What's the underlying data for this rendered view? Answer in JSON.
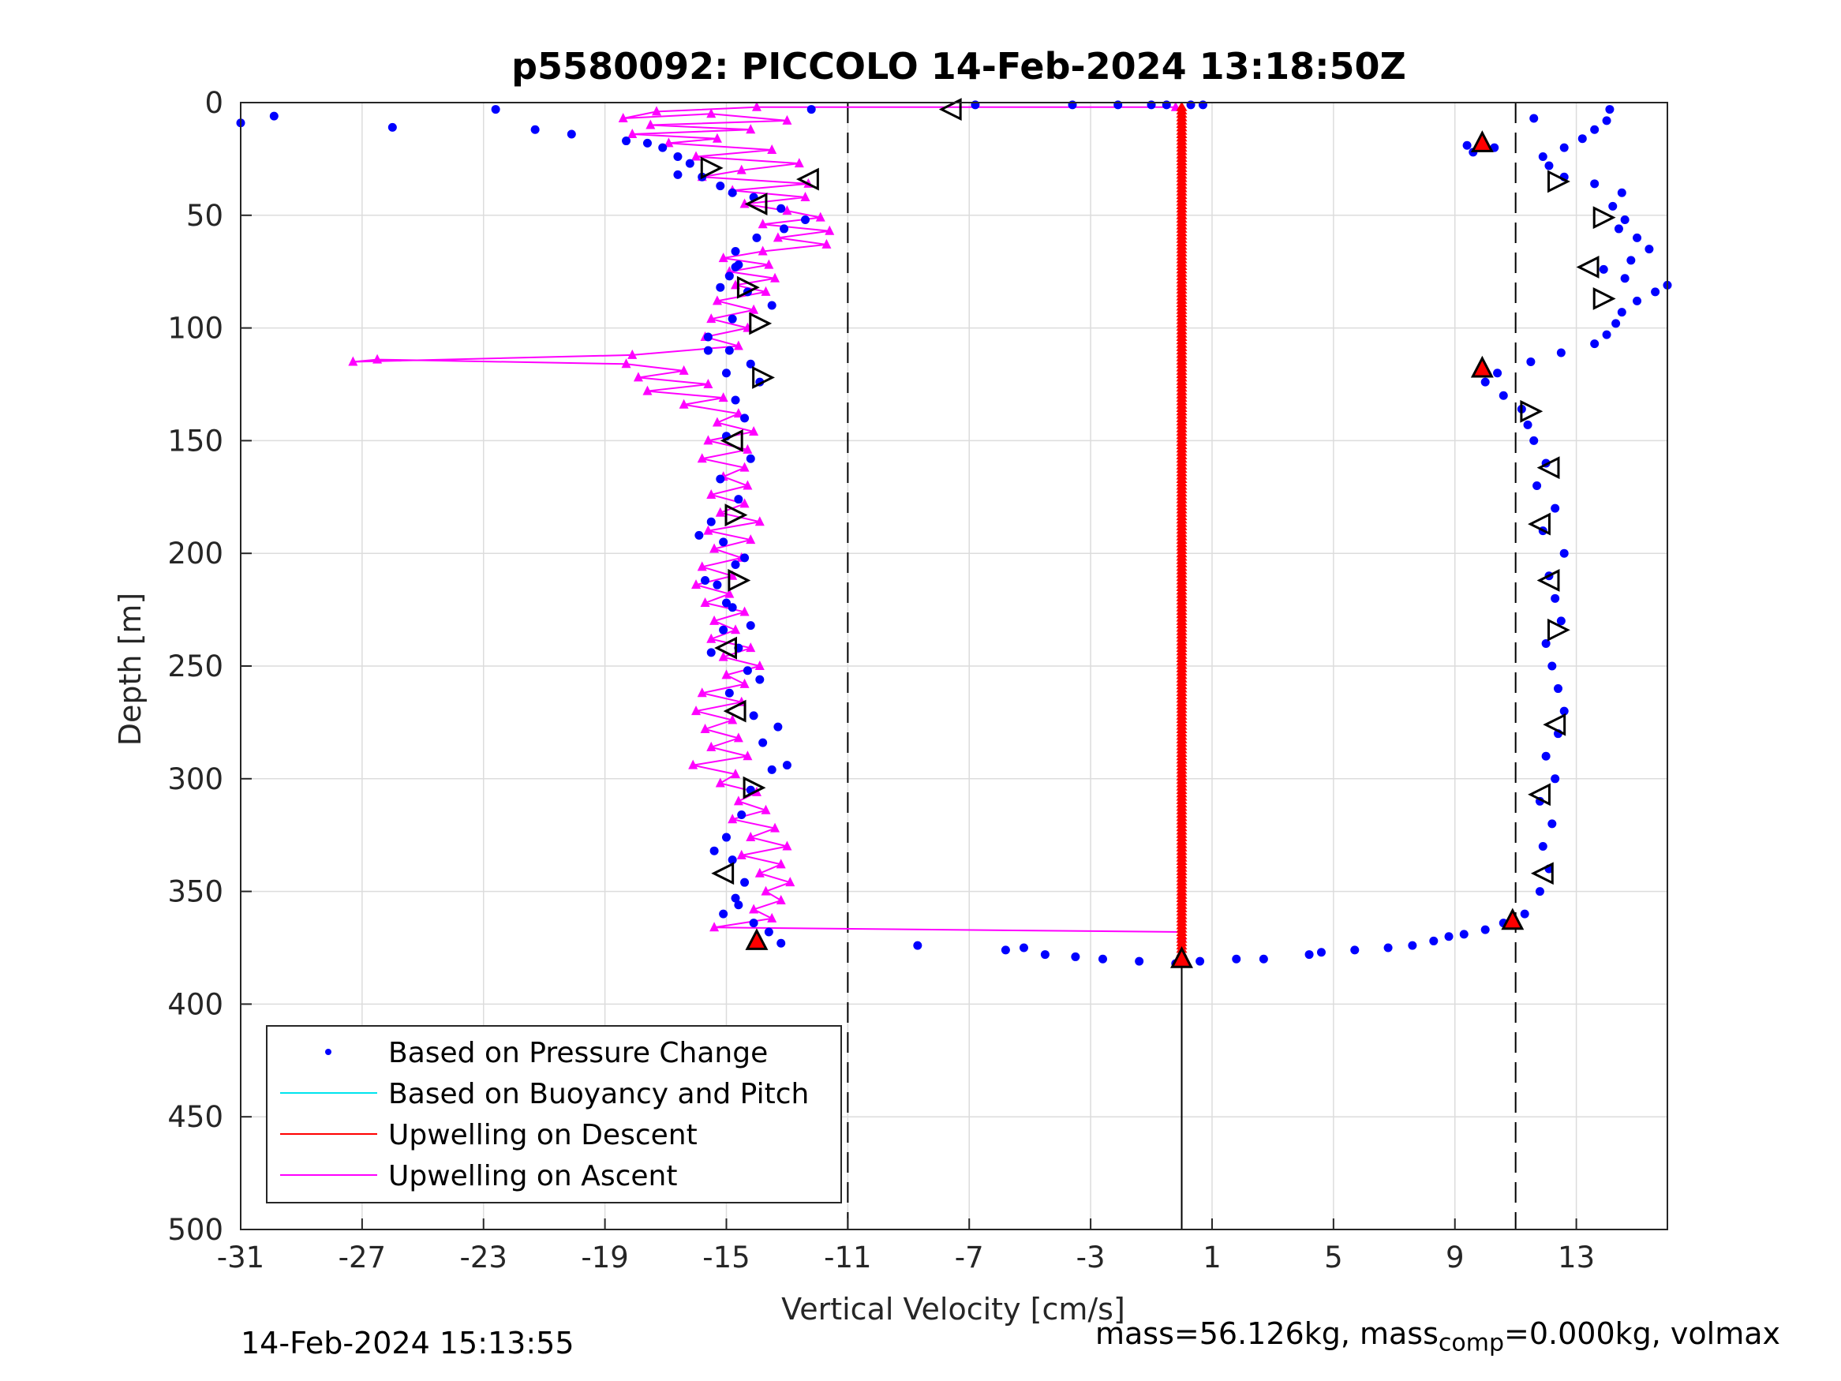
{
  "chart_data": {
    "type": "scatter",
    "title": "p5580092: PICCOLO 14-Feb-2024 13:18:50Z",
    "xlabel": "Vertical Velocity [cm/s]",
    "ylabel": "Depth [m]",
    "xlim": [
      -31,
      16
    ],
    "ylim": [
      0,
      500
    ],
    "y_reversed": true,
    "grid": true,
    "xticks": [
      -31,
      -27,
      -23,
      -19,
      -15,
      -11,
      -7,
      -3,
      1,
      5,
      9,
      13
    ],
    "yticks": [
      0,
      50,
      100,
      150,
      200,
      250,
      300,
      350,
      400,
      450,
      500
    ],
    "reference_lines": [
      {
        "x": -11,
        "style": "dashed"
      },
      {
        "x": 11,
        "style": "dashed"
      },
      {
        "x": 0,
        "style": "solid",
        "from_depth": 378,
        "to_depth": 500
      }
    ],
    "legend": {
      "position": "bottom-left",
      "entries": [
        {
          "label": "Based on Pressure Change",
          "color": "#0000ff",
          "marker": "dot"
        },
        {
          "label": "Based on Buoyancy and Pitch",
          "color": "#00e5ee",
          "marker": "line"
        },
        {
          "label": "Upwelling on Descent",
          "color": "#ff0000",
          "marker": "line"
        },
        {
          "label": "Upwelling on Ascent",
          "color": "#ff00ff",
          "marker": "line"
        }
      ]
    },
    "series": [
      {
        "name": "Based on Pressure Change",
        "color": "#0000ff",
        "points": [
          [
            -31,
            9
          ],
          [
            -29.9,
            6
          ],
          [
            -26,
            11
          ],
          [
            -22.6,
            3
          ],
          [
            -21.3,
            12
          ],
          [
            -20.1,
            14
          ],
          [
            -18.3,
            17
          ],
          [
            -17.6,
            18
          ],
          [
            -17.1,
            20
          ],
          [
            -16.6,
            24
          ],
          [
            -16.2,
            27
          ],
          [
            -16.6,
            32
          ],
          [
            -15.8,
            33
          ],
          [
            -15.2,
            37
          ],
          [
            -14.8,
            40
          ],
          [
            -14.1,
            42
          ],
          [
            -13.2,
            47
          ],
          [
            -12.4,
            52
          ],
          [
            -13.1,
            56
          ],
          [
            -14.0,
            60
          ],
          [
            -14.7,
            66
          ],
          [
            -14.6,
            72
          ],
          [
            -14.9,
            77
          ],
          [
            -14.3,
            84
          ],
          [
            -13.5,
            90
          ],
          [
            -14.8,
            96
          ],
          [
            -15.6,
            104
          ],
          [
            -14.9,
            110
          ],
          [
            -14.2,
            116
          ],
          [
            -13.9,
            124
          ],
          [
            -14.7,
            132
          ],
          [
            -14.4,
            140
          ],
          [
            -15.0,
            148
          ],
          [
            -14.2,
            158
          ],
          [
            -15.2,
            167
          ],
          [
            -14.6,
            176
          ],
          [
            -15.5,
            186
          ],
          [
            -15.1,
            195
          ],
          [
            -14.7,
            205
          ],
          [
            -15.3,
            214
          ],
          [
            -14.8,
            224
          ],
          [
            -15.1,
            234
          ],
          [
            -14.6,
            242
          ],
          [
            -14.3,
            252
          ],
          [
            -14.9,
            262
          ],
          [
            -14.1,
            272
          ],
          [
            -13.8,
            284
          ],
          [
            -13.5,
            296
          ],
          [
            -14.2,
            305
          ],
          [
            -14.5,
            316
          ],
          [
            -15.0,
            326
          ],
          [
            -14.8,
            336
          ],
          [
            -14.4,
            346
          ],
          [
            -14.6,
            356
          ],
          [
            -14.1,
            364
          ],
          [
            -13.6,
            368
          ],
          [
            -13.2,
            373
          ],
          [
            -8.7,
            374
          ],
          [
            -5.8,
            376
          ],
          [
            -5.2,
            375
          ],
          [
            -4.5,
            378
          ],
          [
            -3.5,
            379
          ],
          [
            -2.6,
            380
          ],
          [
            -1.4,
            381
          ],
          [
            -0.2,
            382
          ],
          [
            0.6,
            381
          ],
          [
            1.8,
            380
          ],
          [
            2.7,
            380
          ],
          [
            4.2,
            378
          ],
          [
            4.6,
            377
          ],
          [
            5.7,
            376
          ],
          [
            6.8,
            375
          ],
          [
            7.6,
            374
          ],
          [
            8.3,
            372
          ],
          [
            8.8,
            370
          ],
          [
            9.3,
            369
          ],
          [
            10.0,
            367
          ],
          [
            10.6,
            364
          ],
          [
            11.3,
            360
          ],
          [
            11.8,
            350
          ],
          [
            12.1,
            340
          ],
          [
            11.9,
            330
          ],
          [
            12.2,
            320
          ],
          [
            11.8,
            310
          ],
          [
            12.3,
            300
          ],
          [
            12.0,
            290
          ],
          [
            12.4,
            280
          ],
          [
            12.6,
            270
          ],
          [
            12.4,
            260
          ],
          [
            12.2,
            250
          ],
          [
            12.0,
            240
          ],
          [
            12.5,
            230
          ],
          [
            12.3,
            220
          ],
          [
            12.1,
            210
          ],
          [
            12.6,
            200
          ],
          [
            11.9,
            190
          ],
          [
            12.3,
            180
          ],
          [
            11.7,
            170
          ],
          [
            12.0,
            160
          ],
          [
            11.6,
            150
          ],
          [
            11.4,
            143
          ],
          [
            11.2,
            136
          ],
          [
            10.6,
            130
          ],
          [
            10.0,
            124
          ],
          [
            10.4,
            120
          ],
          [
            11.5,
            115
          ],
          [
            12.5,
            111
          ],
          [
            13.6,
            107
          ],
          [
            14.0,
            103
          ],
          [
            14.3,
            98
          ],
          [
            14.5,
            93
          ],
          [
            15.0,
            88
          ],
          [
            15.6,
            84
          ],
          [
            16.0,
            81
          ],
          [
            14.6,
            78
          ],
          [
            13.9,
            74
          ],
          [
            14.8,
            70
          ],
          [
            15.4,
            65
          ],
          [
            15.0,
            60
          ],
          [
            14.4,
            56
          ],
          [
            14.6,
            52
          ],
          [
            14.2,
            46
          ],
          [
            14.5,
            40
          ],
          [
            13.6,
            36
          ],
          [
            12.6,
            33
          ],
          [
            12.1,
            28
          ],
          [
            11.9,
            24
          ],
          [
            12.6,
            20
          ],
          [
            13.2,
            16
          ],
          [
            13.6,
            12
          ],
          [
            14.0,
            8
          ],
          [
            14.1,
            3
          ],
          [
            11.6,
            7
          ],
          [
            10.3,
            20
          ],
          [
            9.8,
            20
          ],
          [
            9.6,
            22
          ],
          [
            9.4,
            19
          ],
          [
            -2.1,
            1
          ],
          [
            -1.0,
            1
          ],
          [
            -0.5,
            1
          ],
          [
            0.3,
            1
          ],
          [
            0.7,
            1
          ],
          [
            -3.6,
            1
          ],
          [
            -6.8,
            1
          ],
          [
            -12.2,
            3
          ],
          [
            -14.7,
            73
          ],
          [
            -15.2,
            82
          ],
          [
            -15.6,
            110
          ],
          [
            -15.0,
            120
          ],
          [
            -15.9,
            192
          ],
          [
            -14.4,
            202
          ],
          [
            -15.7,
            212
          ],
          [
            -15.0,
            222
          ],
          [
            -14.2,
            232
          ],
          [
            -15.5,
            244
          ],
          [
            -13.9,
            256
          ],
          [
            -13.3,
            277
          ],
          [
            -13.0,
            294
          ],
          [
            -15.4,
            332
          ],
          [
            -14.7,
            353
          ],
          [
            -15.1,
            360
          ]
        ]
      },
      {
        "name": "Upwelling on Descent",
        "color": "#ff0000",
        "x_constant": 0,
        "depth_from": 2,
        "depth_to": 378
      },
      {
        "name": "Upwelling on Ascent",
        "color": "#ff00ff",
        "points": [
          [
            -0.2,
            2
          ],
          [
            -14.0,
            2
          ],
          [
            -17.3,
            4
          ],
          [
            -18.4,
            7
          ],
          [
            -15.5,
            5
          ],
          [
            -13.0,
            8
          ],
          [
            -17.5,
            10
          ],
          [
            -14.2,
            12
          ],
          [
            -18.1,
            14
          ],
          [
            -15.3,
            16
          ],
          [
            -16.9,
            18
          ],
          [
            -13.5,
            21
          ],
          [
            -16.0,
            24
          ],
          [
            -12.6,
            27
          ],
          [
            -14.5,
            30
          ],
          [
            -15.8,
            33
          ],
          [
            -12.3,
            36
          ],
          [
            -14.8,
            39
          ],
          [
            -12.4,
            42
          ],
          [
            -14.4,
            45
          ],
          [
            -13.0,
            48
          ],
          [
            -11.9,
            51
          ],
          [
            -13.8,
            54
          ],
          [
            -11.6,
            57
          ],
          [
            -13.3,
            60
          ],
          [
            -11.7,
            63
          ],
          [
            -13.8,
            66
          ],
          [
            -15.1,
            69
          ],
          [
            -13.6,
            72
          ],
          [
            -14.9,
            75
          ],
          [
            -13.4,
            78
          ],
          [
            -14.7,
            81
          ],
          [
            -13.7,
            84
          ],
          [
            -15.3,
            88
          ],
          [
            -14.1,
            92
          ],
          [
            -15.5,
            96
          ],
          [
            -14.3,
            100
          ],
          [
            -15.7,
            104
          ],
          [
            -14.6,
            108
          ],
          [
            -18.1,
            112
          ],
          [
            -27.3,
            115
          ],
          [
            -26.5,
            114
          ],
          [
            -18.3,
            116
          ],
          [
            -16.4,
            119
          ],
          [
            -17.9,
            122
          ],
          [
            -15.6,
            125
          ],
          [
            -17.6,
            128
          ],
          [
            -15.1,
            131
          ],
          [
            -16.4,
            134
          ],
          [
            -14.6,
            138
          ],
          [
            -15.3,
            142
          ],
          [
            -14.1,
            146
          ],
          [
            -15.6,
            150
          ],
          [
            -14.3,
            154
          ],
          [
            -15.8,
            158
          ],
          [
            -14.4,
            162
          ],
          [
            -15.1,
            166
          ],
          [
            -14.3,
            170
          ],
          [
            -15.5,
            174
          ],
          [
            -14.4,
            178
          ],
          [
            -15.2,
            182
          ],
          [
            -13.9,
            186
          ],
          [
            -15.6,
            190
          ],
          [
            -14.2,
            194
          ],
          [
            -15.4,
            198
          ],
          [
            -14.5,
            202
          ],
          [
            -15.8,
            206
          ],
          [
            -14.8,
            210
          ],
          [
            -16.0,
            214
          ],
          [
            -14.9,
            218
          ],
          [
            -15.7,
            222
          ],
          [
            -14.4,
            226
          ],
          [
            -15.4,
            230
          ],
          [
            -14.7,
            234
          ],
          [
            -15.5,
            238
          ],
          [
            -14.2,
            242
          ],
          [
            -15.1,
            246
          ],
          [
            -13.9,
            250
          ],
          [
            -15.0,
            254
          ],
          [
            -14.4,
            258
          ],
          [
            -15.8,
            262
          ],
          [
            -14.5,
            266
          ],
          [
            -16.0,
            270
          ],
          [
            -14.8,
            274
          ],
          [
            -15.7,
            278
          ],
          [
            -14.6,
            282
          ],
          [
            -15.5,
            286
          ],
          [
            -14.3,
            290
          ],
          [
            -16.1,
            294
          ],
          [
            -14.7,
            298
          ],
          [
            -15.2,
            302
          ],
          [
            -14.0,
            306
          ],
          [
            -14.6,
            310
          ],
          [
            -13.7,
            314
          ],
          [
            -14.8,
            318
          ],
          [
            -13.4,
            322
          ],
          [
            -14.2,
            326
          ],
          [
            -13.0,
            330
          ],
          [
            -14.5,
            334
          ],
          [
            -13.2,
            338
          ],
          [
            -13.9,
            342
          ],
          [
            -12.9,
            346
          ],
          [
            -13.7,
            350
          ],
          [
            -13.2,
            354
          ],
          [
            -14.1,
            358
          ],
          [
            -13.5,
            362
          ],
          [
            -15.4,
            366
          ],
          [
            0.0,
            368
          ],
          [
            0.0,
            370
          ]
        ]
      }
    ],
    "markers": {
      "triangle_left": [
        [
          -7.6,
          3
        ],
        [
          -14.0,
          45
        ],
        [
          -12.3,
          34
        ],
        [
          13.4,
          73
        ],
        [
          -14.8,
          150
        ],
        [
          12.1,
          162
        ],
        [
          11.8,
          187
        ],
        [
          12.1,
          212
        ],
        [
          -15.0,
          242
        ],
        [
          12.3,
          276
        ],
        [
          -14.7,
          270
        ],
        [
          -15.1,
          342
        ],
        [
          11.9,
          342
        ],
        [
          11.8,
          307
        ]
      ],
      "triangle_right": [
        [
          -15.5,
          29
        ],
        [
          -14.3,
          82
        ],
        [
          -13.9,
          98
        ],
        [
          -13.8,
          122
        ],
        [
          -14.7,
          183
        ],
        [
          -14.6,
          212
        ],
        [
          -14.1,
          304
        ],
        [
          12.4,
          35
        ],
        [
          13.9,
          51
        ],
        [
          13.9,
          87
        ],
        [
          11.5,
          137
        ],
        [
          12.4,
          234
        ]
      ],
      "triangle_up_red": [
        [
          -14.0,
          372
        ],
        [
          0.0,
          380
        ],
        [
          10.9,
          363
        ],
        [
          9.9,
          18
        ],
        [
          9.9,
          118
        ]
      ]
    }
  },
  "footer": {
    "left_timestamp": "14-Feb-2024 15:13:55",
    "mass_text": "mass=56.126kg, mass",
    "mass_sub": "comp",
    "mass_rest": "=0.000kg, volmax"
  }
}
